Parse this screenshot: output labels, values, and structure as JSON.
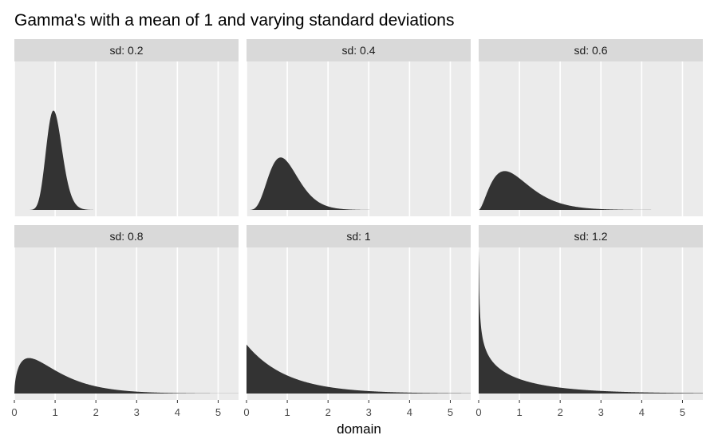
{
  "chart_data": {
    "type": "area",
    "title": "Gamma's with a mean of 1 and varying standard deviations",
    "xlabel": "domain",
    "ylabel": "",
    "xlim": [
      0,
      5.5
    ],
    "x_ticks": [
      0,
      1,
      2,
      3,
      4,
      5
    ],
    "y_axis_shown": false,
    "grid": "vertical major gridlines only",
    "facet_by": "sd",
    "mean": 1,
    "distribution": "gamma (shape = 1/sd^2, rate = 1/sd^2)",
    "panels": [
      {
        "strip": "sd: 0.2",
        "sd": 0.2
      },
      {
        "strip": "sd: 0.4",
        "sd": 0.4
      },
      {
        "strip": "sd: 0.6",
        "sd": 0.6
      },
      {
        "strip": "sd: 0.8",
        "sd": 0.8
      },
      {
        "strip": "sd: 1",
        "sd": 1
      },
      {
        "strip": "sd: 1.2",
        "sd": 1.2
      }
    ],
    "fill_color": "#333333",
    "panel_bg": "#ebebeb",
    "strip_bg": "#d9d9d9"
  }
}
